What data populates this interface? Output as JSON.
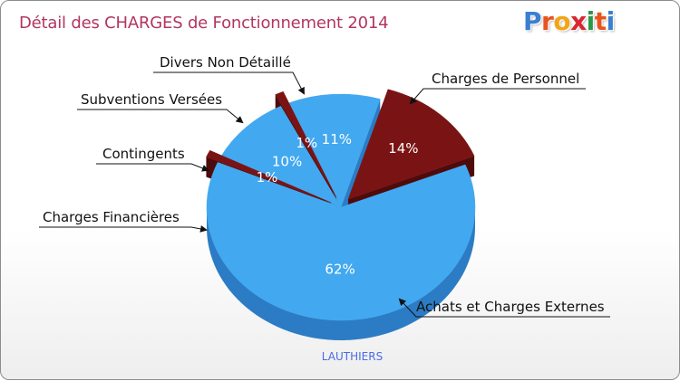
{
  "header": {
    "title": "Détail des CHARGES de Fonctionnement 2014",
    "logo": [
      "P",
      "r",
      "o",
      "x",
      "i",
      "t",
      "i"
    ]
  },
  "colors": {
    "blue": "#42a8f0",
    "blue_side": "#2b7cc4",
    "dark_red": "#7a1414",
    "dark_red_side": "#4e0b0b",
    "title": "#b2365f",
    "logo": [
      "#3a7fd1",
      "#e8541e",
      "#f2a516",
      "#d9272e",
      "#2b9a48",
      "#e8541e",
      "#3a7fd1"
    ]
  },
  "chart_data": {
    "type": "pie",
    "title": "Détail des CHARGES de Fonctionnement 2014",
    "subtitle": "LAUTHIERS",
    "three_d": true,
    "slices": [
      {
        "label": "Charges de Personnel",
        "value": 14,
        "display": "14%",
        "color": "#7a1414"
      },
      {
        "label": "Achats et Charges Externes",
        "value": 62,
        "display": "62%",
        "color": "#42a8f0"
      },
      {
        "label": "Charges Financières",
        "value": 1,
        "display": "1%",
        "color": "#7a1414"
      },
      {
        "label": "Contingents",
        "value": 10,
        "display": "10%",
        "color": "#42a8f0"
      },
      {
        "label": "Subventions Versées",
        "value": 1,
        "display": "1%",
        "color": "#7a1414"
      },
      {
        "label": "Divers Non Détaillé",
        "value": 11,
        "display": "11%",
        "color": "#42a8f0"
      }
    ]
  }
}
